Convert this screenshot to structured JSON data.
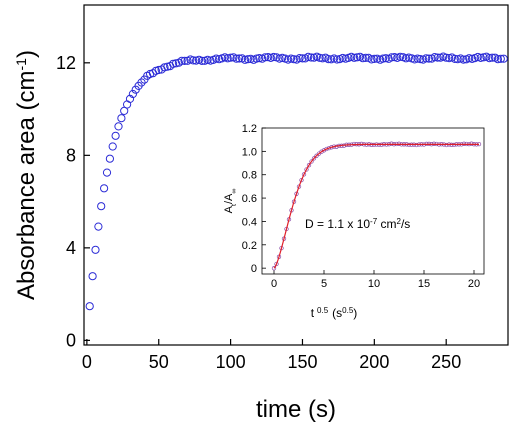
{
  "chart_data": [
    {
      "type": "scatter",
      "xlabel": "time (s)",
      "ylabel_main": "Absorbance area (cm",
      "ylabel_sup": "-1",
      "ylabel_close": ")",
      "xlim": [
        -2,
        293
      ],
      "ylim": [
        -0.2,
        14.5
      ],
      "xticks": [
        0,
        50,
        100,
        150,
        200,
        250
      ],
      "yticks": [
        0,
        4,
        8,
        12
      ],
      "marker_color": "#2b2bd6",
      "marker": "open-circle",
      "model": {
        "plateau": 12.2,
        "tau": 15.5,
        "t_step": 2,
        "t_start": 2,
        "t_end": 290
      }
    },
    {
      "type": "scatter",
      "position": "inset",
      "xlabel_main": "t",
      "xlabel_exp": "0.5",
      "xlabel_unit_open": "(s",
      "xlabel_unit_exp": "0.5",
      "xlabel_unit_close": ")",
      "ylabel_main": "A",
      "ylabel_sub1": "t",
      "ylabel_slash": "/A",
      "ylabel_sub2": "∞",
      "xlim": [
        -1.2,
        21
      ],
      "ylim": [
        -0.05,
        1.2
      ],
      "xticks": [
        0,
        5,
        10,
        15,
        20
      ],
      "yticks": [
        0,
        0.2,
        0.4,
        0.6,
        0.8,
        1.0,
        1.2
      ],
      "marker_color": "#8a4aa8",
      "fit_color": "#e0202a",
      "annotation_pre": "D = 1.1 x 10",
      "annotation_exp": "-7",
      "annotation_post": " cm",
      "annotation_exp2": "2",
      "annotation_tail": "/s",
      "model": {
        "plateau": 1.06,
        "k": 0.42,
        "p": 1.5,
        "x_step": 0.25,
        "x_start": 0,
        "x_end": 20.5
      }
    }
  ]
}
